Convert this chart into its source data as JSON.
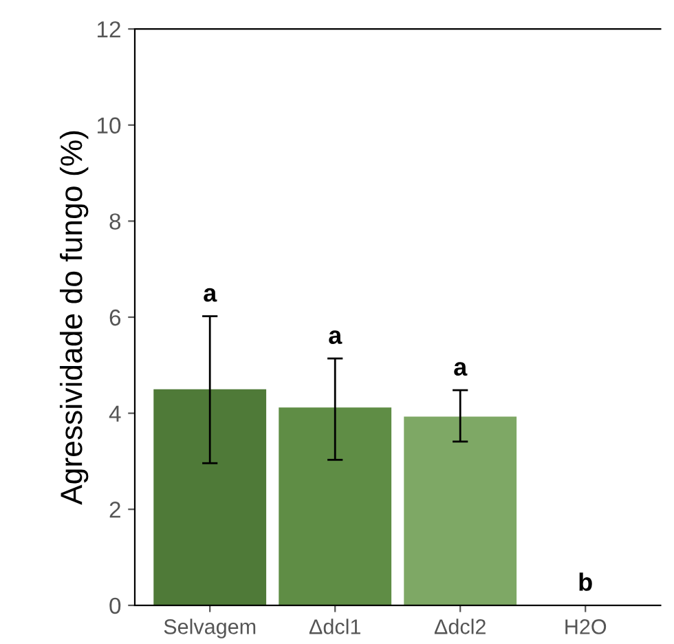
{
  "chart_data": {
    "type": "bar",
    "ylabel": "Agressividade do fungo (%)",
    "categories": [
      "Selvagem",
      "Δdcl1",
      "Δdcl2",
      "H2O"
    ],
    "values": [
      4.5,
      4.12,
      3.93,
      0
    ],
    "colors": [
      "#4f7a38",
      "#5f8d45",
      "#7ea865",
      "#7ea865"
    ],
    "errors": [
      [
        2.96,
        6.02
      ],
      [
        3.03,
        5.14
      ],
      [
        3.41,
        4.48
      ],
      null
    ],
    "ylim": [
      0,
      12
    ],
    "yticks": [
      0,
      2,
      4,
      6,
      8,
      10,
      12
    ],
    "grid": false,
    "annotations": [
      {
        "text": "a",
        "x": "Selvagem",
        "y": 6.02
      },
      {
        "text": "a",
        "x": "Δdcl1",
        "y": 5.14
      },
      {
        "text": "a",
        "x": "Δdcl2",
        "y": 4.48
      },
      {
        "text": "b",
        "x": "H2O",
        "y": 0
      }
    ]
  }
}
